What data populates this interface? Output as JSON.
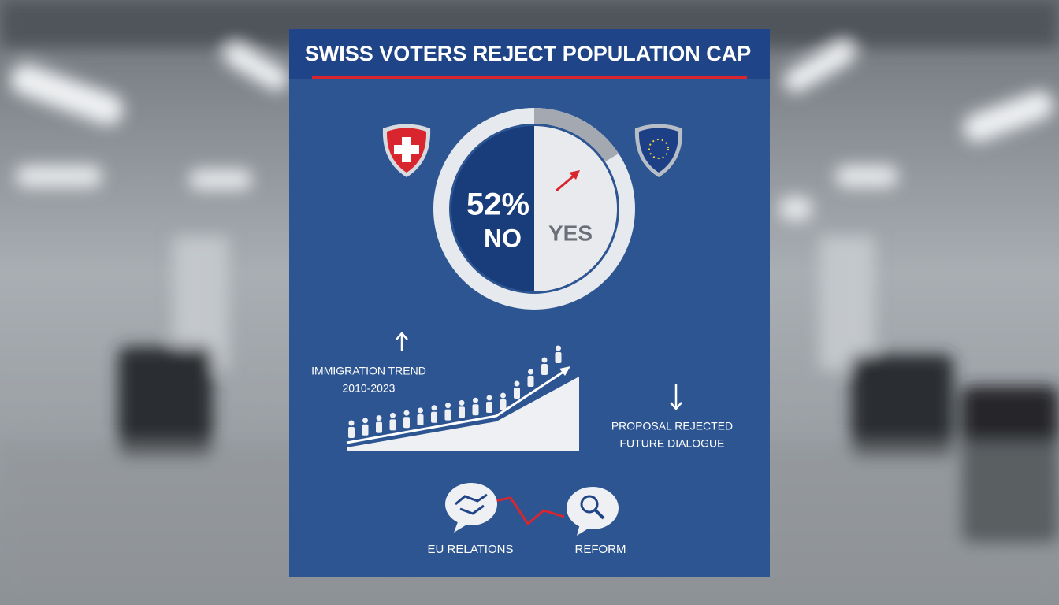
{
  "header": {
    "title": "SWISS VOTERS REJECT POPULATION CAP"
  },
  "vote": {
    "no_share": "52%",
    "no_label": "NO",
    "yes_label": "YES"
  },
  "trend": {
    "label": "IMMIGRATION TREND",
    "period": "2010-2023"
  },
  "outcome": {
    "line1": "PROPOSAL REJECTED",
    "line2": "FUTURE DIALOGUE"
  },
  "topics": [
    {
      "label": "EU RELATIONS"
    },
    {
      "label": "REFORM"
    }
  ]
}
